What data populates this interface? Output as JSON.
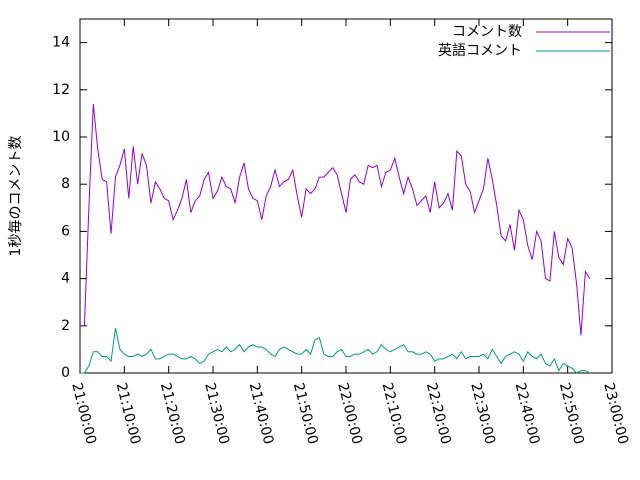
{
  "chart_data": {
    "type": "line",
    "y_label": "1秒毎のコメント数",
    "x": [
      "21:00:00",
      "21:01:00",
      "21:02:00",
      "21:03:00",
      "21:04:00",
      "21:05:00",
      "21:06:00",
      "21:07:00",
      "21:08:00",
      "21:09:00",
      "21:10:00",
      "21:11:00",
      "21:12:00",
      "21:13:00",
      "21:14:00",
      "21:15:00",
      "21:16:00",
      "21:17:00",
      "21:18:00",
      "21:19:00",
      "21:20:00",
      "21:21:00",
      "21:22:00",
      "21:23:00",
      "21:24:00",
      "21:25:00",
      "21:26:00",
      "21:27:00",
      "21:28:00",
      "21:29:00",
      "21:30:00",
      "21:31:00",
      "21:32:00",
      "21:33:00",
      "21:34:00",
      "21:35:00",
      "21:36:00",
      "21:37:00",
      "21:38:00",
      "21:39:00",
      "21:40:00",
      "21:41:00",
      "21:42:00",
      "21:43:00",
      "21:44:00",
      "21:45:00",
      "21:46:00",
      "21:47:00",
      "21:48:00",
      "21:49:00",
      "21:50:00",
      "21:51:00",
      "21:52:00",
      "21:53:00",
      "21:54:00",
      "21:55:00",
      "21:56:00",
      "21:57:00",
      "21:58:00",
      "21:59:00",
      "22:00:00",
      "22:01:00",
      "22:02:00",
      "22:03:00",
      "22:04:00",
      "22:05:00",
      "22:06:00",
      "22:07:00",
      "22:08:00",
      "22:09:00",
      "22:10:00",
      "22:11:00",
      "22:12:00",
      "22:13:00",
      "22:14:00",
      "22:15:00",
      "22:16:00",
      "22:17:00",
      "22:18:00",
      "22:19:00",
      "22:20:00",
      "22:21:00",
      "22:22:00",
      "22:23:00",
      "22:24:00",
      "22:25:00",
      "22:26:00",
      "22:27:00",
      "22:28:00",
      "22:29:00",
      "22:30:00",
      "22:31:00",
      "22:32:00",
      "22:33:00",
      "22:34:00",
      "22:35:00",
      "22:36:00",
      "22:37:00",
      "22:38:00",
      "22:39:00",
      "22:40:00",
      "22:41:00",
      "22:42:00",
      "22:43:00",
      "22:44:00",
      "22:45:00",
      "22:46:00",
      "22:47:00",
      "22:48:00",
      "22:49:00",
      "22:50:00",
      "22:51:00",
      "22:52:00",
      "22:53:00",
      "22:54:00",
      "22:55:00"
    ],
    "series": [
      {
        "name": "コメント数",
        "color": "#9400d3",
        "values": [
          2.0,
          2.0,
          7.0,
          11.4,
          9.5,
          8.2,
          8.1,
          5.9,
          8.3,
          8.8,
          9.5,
          7.4,
          9.6,
          8.0,
          9.3,
          8.8,
          7.2,
          8.1,
          7.8,
          7.4,
          7.3,
          6.5,
          6.9,
          7.4,
          8.2,
          6.8,
          7.3,
          7.5,
          8.2,
          8.5,
          7.4,
          7.7,
          8.3,
          7.9,
          7.8,
          7.2,
          8.3,
          8.9,
          7.8,
          7.4,
          7.3,
          6.5,
          7.5,
          7.9,
          8.6,
          7.9,
          8.1,
          8.2,
          8.6,
          7.5,
          6.6,
          7.8,
          7.6,
          7.8,
          8.3,
          8.3,
          8.5,
          8.7,
          8.4,
          7.6,
          6.8,
          8.2,
          8.4,
          8.1,
          8.0,
          8.8,
          8.7,
          8.8,
          7.9,
          8.5,
          8.6,
          9.1,
          8.3,
          7.6,
          8.3,
          7.8,
          7.1,
          7.3,
          7.5,
          6.8,
          8.1,
          7.0,
          7.2,
          7.6,
          6.9,
          9.4,
          9.2,
          8.0,
          7.7,
          6.8,
          7.3,
          7.8,
          9.1,
          8.2,
          7.1,
          5.8,
          5.6,
          6.3,
          5.2,
          6.9,
          6.5,
          5.4,
          4.8,
          6.0,
          5.6,
          4.0,
          3.9,
          6.0,
          4.9,
          4.6,
          5.7,
          5.3,
          3.8,
          1.6,
          4.3,
          4.0
        ]
      },
      {
        "name": "英語コメント",
        "color": "#009e73",
        "values": [
          0,
          0,
          0.3,
          0.9,
          0.9,
          0.7,
          0.7,
          0.5,
          1.9,
          1.0,
          0.8,
          0.7,
          0.7,
          0.8,
          0.7,
          0.8,
          1.0,
          0.6,
          0.6,
          0.7,
          0.8,
          0.8,
          0.7,
          0.6,
          0.6,
          0.7,
          0.6,
          0.4,
          0.5,
          0.8,
          0.9,
          1.0,
          0.9,
          1.1,
          0.9,
          1.0,
          1.2,
          0.9,
          1.1,
          1.2,
          1.1,
          1.1,
          1.0,
          0.8,
          0.7,
          1.0,
          1.1,
          1.0,
          0.9,
          0.8,
          0.8,
          1.0,
          0.8,
          1.4,
          1.5,
          0.8,
          0.7,
          0.7,
          0.9,
          1.0,
          0.7,
          0.7,
          0.8,
          0.8,
          0.9,
          1.0,
          0.8,
          0.9,
          1.2,
          1.0,
          0.9,
          1.0,
          1.1,
          1.2,
          0.9,
          0.9,
          0.8,
          0.8,
          0.9,
          0.8,
          0.5,
          0.6,
          0.6,
          0.7,
          0.8,
          0.6,
          0.9,
          0.6,
          0.7,
          0.7,
          0.7,
          0.8,
          0.6,
          1.0,
          0.7,
          0.4,
          0.7,
          0.8,
          0.9,
          0.8,
          0.5,
          0.9,
          0.7,
          0.6,
          0.8,
          0.4,
          0.3,
          0.6,
          0.1,
          0.4,
          0.3,
          0.2,
          0.0,
          0.1,
          0.1,
          0.0
        ]
      }
    ],
    "xlim": [
      "21:00:00",
      "23:00:00"
    ],
    "xticks": [
      "21:00:00",
      "21:10:00",
      "21:20:00",
      "21:30:00",
      "21:40:00",
      "21:50:00",
      "22:00:00",
      "22:10:00",
      "22:20:00",
      "22:30:00",
      "22:40:00",
      "22:50:00",
      "23:00:00"
    ],
    "ylim": [
      0,
      15
    ],
    "yticks": [
      0,
      2,
      4,
      6,
      8,
      10,
      12,
      14
    ],
    "legend": "top-right"
  }
}
